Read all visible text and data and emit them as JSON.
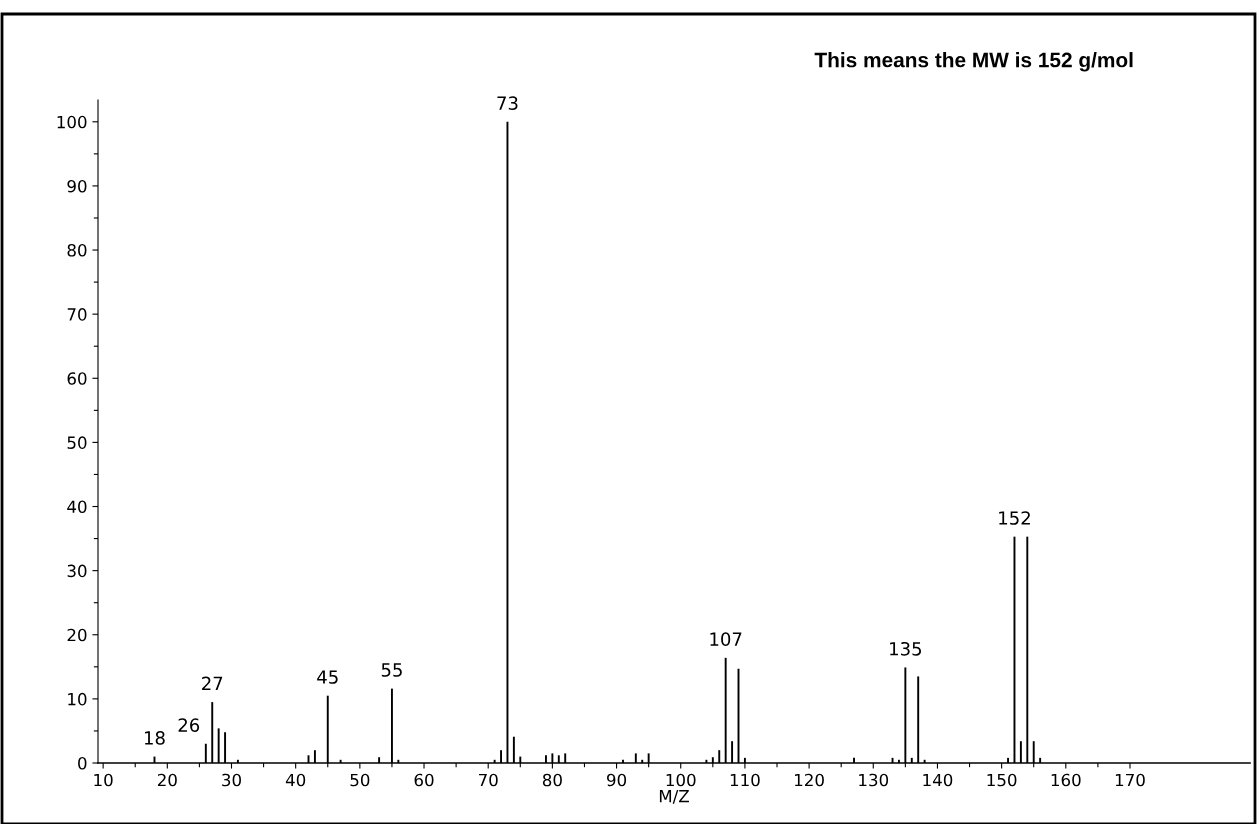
{
  "chart_data": {
    "type": "bar",
    "xlabel": "M/Z",
    "x": [
      18,
      26,
      27,
      28,
      29,
      31,
      42,
      43,
      45,
      47,
      53,
      55,
      56,
      71,
      72,
      73,
      74,
      75,
      79,
      80,
      81,
      82,
      91,
      93,
      94,
      95,
      104,
      105,
      106,
      107,
      108,
      109,
      110,
      127,
      133,
      134,
      135,
      136,
      137,
      138,
      151,
      152,
      153,
      154,
      155,
      156
    ],
    "values": [
      1,
      3,
      9.5,
      5.4,
      4.8,
      0.5,
      1.2,
      2,
      10.5,
      0.5,
      0.9,
      11.6,
      0.5,
      0.5,
      2,
      100,
      4.1,
      1,
      1.2,
      1.5,
      1.2,
      1.5,
      0.5,
      1.5,
      0.5,
      1.5,
      0.5,
      0.9,
      2,
      16.4,
      3.4,
      14.7,
      0.8,
      0.8,
      0.8,
      0.5,
      14.9,
      0.8,
      13.5,
      0.5,
      0.8,
      35.3,
      3.4,
      35.3,
      3.4,
      0.8
    ],
    "color": "#000000",
    "xlim": [
      9.2,
      188.7
    ],
    "ylim": [
      0,
      103.4
    ],
    "xticks": [
      10,
      {
        "value": 15,
        "label": null
      },
      20,
      {
        "value": 25,
        "label": null
      },
      30,
      {
        "value": 35,
        "label": null
      },
      40,
      {
        "value": 45,
        "label": null
      },
      50,
      {
        "value": 55,
        "label": null
      },
      60,
      {
        "value": 65,
        "label": null
      },
      70,
      {
        "value": 75,
        "label": null
      },
      80,
      {
        "value": 85,
        "label": null
      },
      90,
      {
        "value": 95,
        "label": null
      },
      100,
      {
        "value": 105,
        "label": null
      },
      110,
      {
        "value": 115,
        "label": null
      },
      120,
      {
        "value": 125,
        "label": null
      },
      130,
      {
        "value": 135,
        "label": null
      },
      140,
      {
        "value": 145,
        "label": null
      },
      150,
      {
        "value": 155,
        "label": null
      },
      160,
      {
        "value": 165,
        "label": null
      },
      170
    ],
    "yticks": [
      0,
      {
        "value": 5,
        "label": null
      },
      10,
      {
        "value": 15,
        "label": null
      },
      20,
      {
        "value": 25,
        "label": null
      },
      30,
      {
        "value": 35,
        "label": null
      },
      40,
      {
        "value": 45,
        "label": null
      },
      50,
      {
        "value": 55,
        "label": null
      },
      60,
      {
        "value": 65,
        "label": null
      },
      70,
      {
        "value": 75,
        "label": null
      },
      80,
      {
        "value": 85,
        "label": null
      },
      90,
      {
        "value": 95,
        "label": null
      },
      100
    ],
    "grid": false,
    "annotations": [
      {
        "text": "This means the MW is 152 g/mol"
      },
      {
        "text": "18",
        "x": 18,
        "y": 1
      },
      {
        "text": "26",
        "x": 26,
        "y": 3
      },
      {
        "text": "27",
        "x": 27,
        "y": 9.5
      },
      {
        "text": "45",
        "x": 45,
        "y": 10.5
      },
      {
        "text": "55",
        "x": 55,
        "y": 11.6
      },
      {
        "text": "73",
        "x": 73,
        "y": 100
      },
      {
        "text": "107",
        "x": 107,
        "y": 16.4
      },
      {
        "text": "135",
        "x": 135,
        "y": 14.9
      },
      {
        "text": "152",
        "x": 152,
        "y": 35.3
      }
    ]
  }
}
